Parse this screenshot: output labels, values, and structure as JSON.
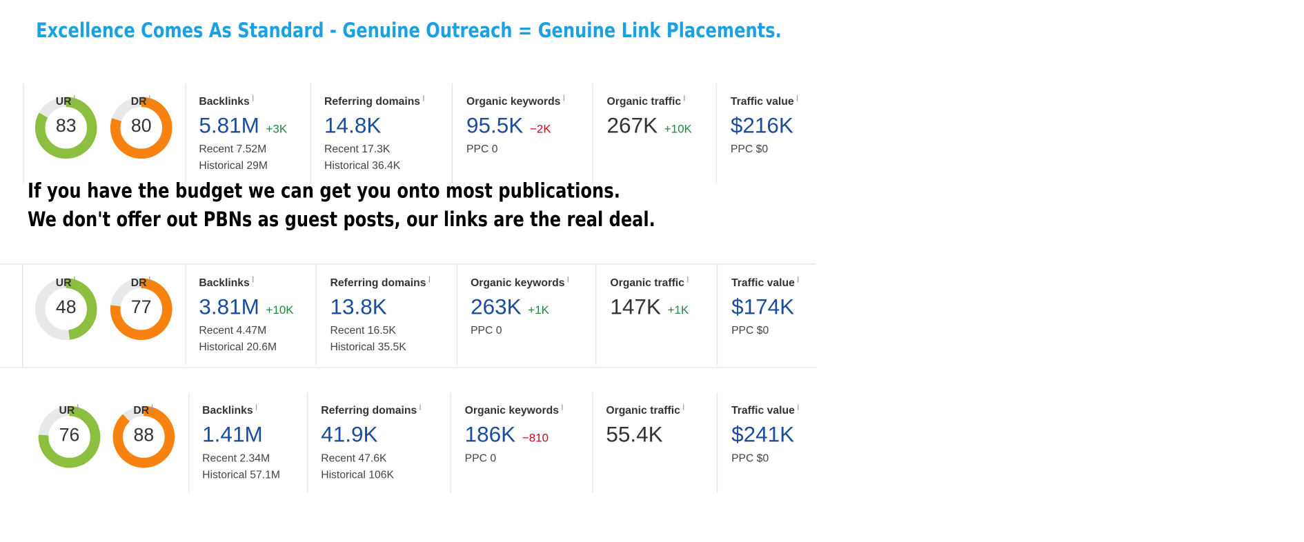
{
  "header": {
    "title": "Excellence Comes As Standard - Genuine Outreach = Genuine Link Placements."
  },
  "message": {
    "lines": [
      "If you have the budget we can get you onto most publications.",
      "We don't offer out PBNs as guest posts, our links are the real deal."
    ]
  },
  "panels": [
    {
      "gauges": [
        {
          "label": "UR",
          "value": 83,
          "color": "#8cbf3f"
        },
        {
          "label": "DR",
          "value": 80,
          "color": "#f7820f"
        }
      ],
      "metrics": [
        {
          "label": "Backlinks",
          "value": "5.81M",
          "color": "#1a4e9c",
          "delta": "+3K",
          "sub": [
            "Recent 7.52M",
            "Historical 29M"
          ]
        },
        {
          "label": "Referring domains",
          "value": "14.8K",
          "color": "#1a4e9c",
          "sub": [
            "Recent 17.3K",
            "Historical 36.4K"
          ]
        },
        {
          "label": "Organic keywords",
          "value": "95.5K",
          "color": "#1a4e9c",
          "delta": "−2K",
          "sub": [
            "PPC 0"
          ]
        },
        {
          "label": "Organic traffic",
          "value": "267K",
          "color": "#333333",
          "delta": "+10K",
          "sub": []
        },
        {
          "label": "Traffic value",
          "value": "$216K",
          "color": "#1a4e9c",
          "sub": [
            "PPC $0"
          ]
        }
      ]
    },
    {
      "gauges": [
        {
          "label": "UR",
          "value": 48,
          "color": "#8cbf3f"
        },
        {
          "label": "DR",
          "value": 77,
          "color": "#f7820f"
        }
      ],
      "metrics": [
        {
          "label": "Backlinks",
          "value": "3.81M",
          "color": "#1a4e9c",
          "delta": "+10K",
          "sub": [
            "Recent 4.47M",
            "Historical 20.6M"
          ]
        },
        {
          "label": "Referring domains",
          "value": "13.8K",
          "color": "#1a4e9c",
          "sub": [
            "Recent 16.5K",
            "Historical 35.5K"
          ]
        },
        {
          "label": "Organic keywords",
          "value": "263K",
          "color": "#1a4e9c",
          "delta": "+1K",
          "sub": [
            "PPC 0"
          ]
        },
        {
          "label": "Organic traffic",
          "value": "147K",
          "color": "#333333",
          "delta": "+1K",
          "sub": []
        },
        {
          "label": "Traffic value",
          "value": "$174K",
          "color": "#1a4e9c",
          "sub": [
            "PPC $0"
          ]
        }
      ]
    },
    {
      "gauges": [
        {
          "label": "UR",
          "value": 76,
          "color": "#8cbf3f"
        },
        {
          "label": "DR",
          "value": 88,
          "color": "#f7820f"
        }
      ],
      "metrics": [
        {
          "label": "Backlinks",
          "value": "1.41M",
          "color": "#1a4e9c",
          "sub": [
            "Recent 2.34M",
            "Historical 57.1M"
          ]
        },
        {
          "label": "Referring domains",
          "value": "41.9K",
          "color": "#1a4e9c",
          "sub": [
            "Recent 47.6K",
            "Historical 106K"
          ]
        },
        {
          "label": "Organic keywords",
          "value": "186K",
          "color": "#1a4e9c",
          "delta": "−810",
          "sub": [
            "PPC 0"
          ]
        },
        {
          "label": "Organic traffic",
          "value": "55.4K",
          "color": "#333333",
          "sub": []
        },
        {
          "label": "Traffic value",
          "value": "$241K",
          "color": "#1a4e9c",
          "sub": [
            "PPC $0"
          ]
        }
      ]
    }
  ]
}
